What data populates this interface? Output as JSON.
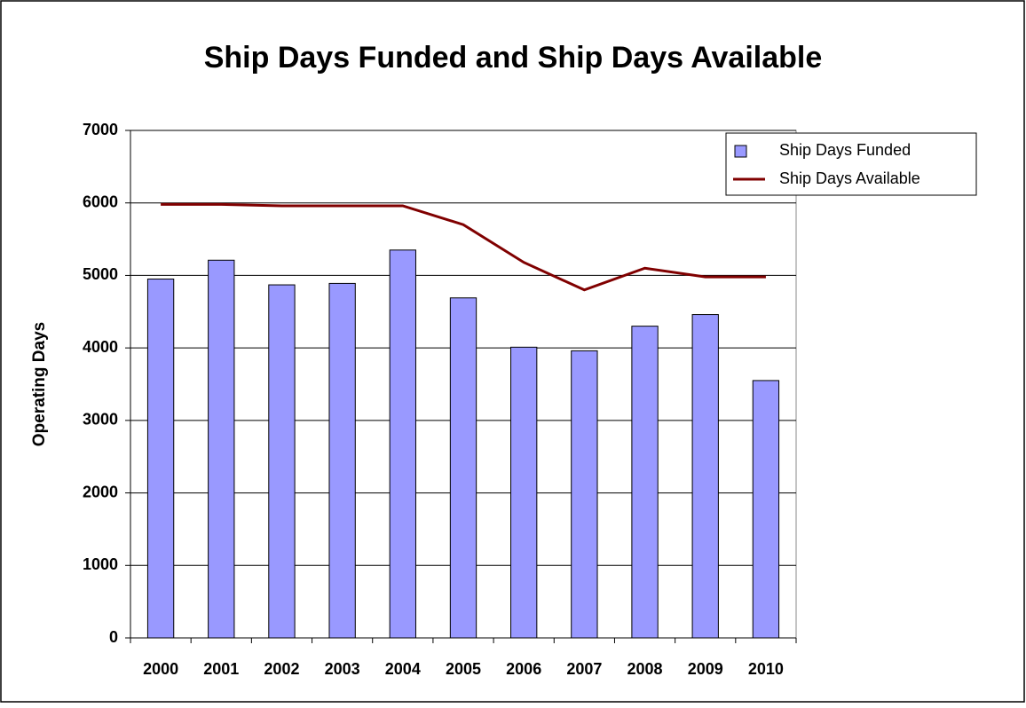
{
  "chart_data": {
    "type": "bar",
    "title": "Ship Days Funded and Ship Days Available",
    "y_label": "Operating Days",
    "categories": [
      "2000",
      "2001",
      "2002",
      "2003",
      "2004",
      "2005",
      "2006",
      "2007",
      "2008",
      "2009",
      "2010"
    ],
    "series": [
      {
        "name": "Ship Days Funded",
        "type": "bar",
        "color": "#9999ff",
        "values": [
          4950,
          5210,
          4870,
          4890,
          5350,
          4690,
          4010,
          3960,
          4300,
          4460,
          3550
        ]
      },
      {
        "name": "Ship Days Available",
        "type": "line",
        "color": "#800000",
        "values": [
          5980,
          5980,
          5960,
          5960,
          5960,
          5700,
          5180,
          4800,
          5100,
          4980,
          4980
        ]
      }
    ],
    "ylim": [
      0,
      7000
    ],
    "yticks": [
      0,
      1000,
      2000,
      3000,
      4000,
      5000,
      6000,
      7000
    ],
    "grid": true,
    "legend": "top-right"
  }
}
